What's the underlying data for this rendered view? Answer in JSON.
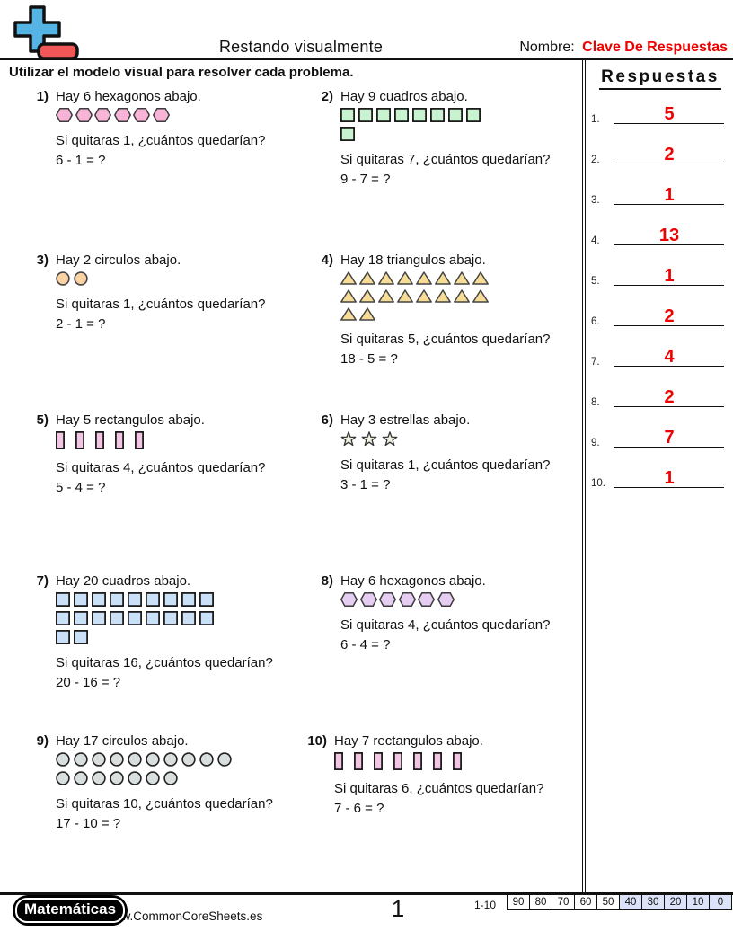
{
  "header": {
    "title": "Restando visualmente",
    "name_label": "Nombre:",
    "name_value": "Clave De Respuestas"
  },
  "instruction": "Utilizar el modelo visual para resolver cada problema.",
  "answers_panel": {
    "title": "Respuestas",
    "items": [
      {
        "label": "1.",
        "value": "5"
      },
      {
        "label": "2.",
        "value": "2"
      },
      {
        "label": "3.",
        "value": "1"
      },
      {
        "label": "4.",
        "value": "13"
      },
      {
        "label": "5.",
        "value": "1"
      },
      {
        "label": "6.",
        "value": "2"
      },
      {
        "label": "7.",
        "value": "4"
      },
      {
        "label": "8.",
        "value": "2"
      },
      {
        "label": "9.",
        "value": "7"
      },
      {
        "label": "10.",
        "value": "1"
      }
    ]
  },
  "problems": [
    {
      "number": "1)",
      "intro": "Hay 6 hexagonos abajo.",
      "shape": "hexagon",
      "fill": "#f8b4d6",
      "stroke": "#3c3c3c",
      "rows": [
        6
      ],
      "question": "Si quitaras 1, ¿cuántos quedarían?",
      "equation": "6 - 1 = ?"
    },
    {
      "number": "2)",
      "intro": "Hay 9 cuadros abajo.",
      "shape": "square",
      "fill": "#c9f2d0",
      "stroke": "#111111",
      "rows": [
        8,
        1
      ],
      "question": "Si quitaras 7, ¿cuántos quedarían?",
      "equation": "9 - 7 = ?"
    },
    {
      "number": "3)",
      "intro": "Hay 2 circulos abajo.",
      "shape": "circle",
      "fill": "#fbd2a4",
      "stroke": "#444444",
      "rows": [
        2
      ],
      "question": "Si quitaras 1, ¿cuántos quedarían?",
      "equation": "2 - 1 = ?"
    },
    {
      "number": "4)",
      "intro": "Hay 18 triangulos abajo.",
      "shape": "triangle",
      "fill": "#f6dc96",
      "stroke": "#444444",
      "rows": [
        8,
        8,
        2
      ],
      "question": "Si quitaras 5, ¿cuántos quedarían?",
      "equation": "18 - 5 = ?"
    },
    {
      "number": "5)",
      "intro": "Hay 5 rectangulos abajo.",
      "shape": "rect-v",
      "fill": "#f2c6e2",
      "stroke": "#111111",
      "rows": [
        5
      ],
      "question": "Si quitaras 4, ¿cuántos quedarían?",
      "equation": "5 - 4 = ?"
    },
    {
      "number": "6)",
      "intro": "Hay 3 estrellas abajo.",
      "shape": "star",
      "fill": "#edf3e1",
      "stroke": "#333333",
      "rows": [
        3
      ],
      "question": "Si quitaras 1, ¿cuántos quedarían?",
      "equation": "3 - 1 = ?"
    },
    {
      "number": "7)",
      "intro": "Hay 20 cuadros abajo.",
      "shape": "square",
      "fill": "#c9e0f7",
      "stroke": "#111111",
      "rows": [
        9,
        9,
        2
      ],
      "question": "Si quitaras 16, ¿cuántos quedarían?",
      "equation": "20 - 16 = ?"
    },
    {
      "number": "8)",
      "intro": "Hay 6 hexagonos abajo.",
      "shape": "hexagon",
      "fill": "#e5cef2",
      "stroke": "#3c3c3c",
      "rows": [
        6
      ],
      "question": "Si quitaras 4, ¿cuántos quedarían?",
      "equation": "6 - 4 = ?"
    },
    {
      "number": "9)",
      "intro": "Hay 17 circulos abajo.",
      "shape": "circle",
      "fill": "#d9dede",
      "stroke": "#222222",
      "rows": [
        10,
        7
      ],
      "question": "Si quitaras 10, ¿cuántos quedarían?",
      "equation": "17 - 10 = ?"
    },
    {
      "number": "10)",
      "intro": "Hay 7 rectangulos abajo.",
      "shape": "rect-v",
      "fill": "#f2c6e2",
      "stroke": "#111111",
      "rows": [
        7
      ],
      "question": "Si quitaras 6, ¿cuántos quedarían?",
      "equation": "7 - 6 = ?"
    }
  ],
  "footer": {
    "brand": "Matemáticas",
    "url": "www.CommonCoreSheets.es",
    "page": "1",
    "range_label": "1-10",
    "scores": [
      {
        "label": "90",
        "highlighted": false
      },
      {
        "label": "80",
        "highlighted": false
      },
      {
        "label": "70",
        "highlighted": false
      },
      {
        "label": "60",
        "highlighted": false
      },
      {
        "label": "50",
        "highlighted": false
      },
      {
        "label": "40",
        "highlighted": true
      },
      {
        "label": "30",
        "highlighted": true
      },
      {
        "label": "20",
        "highlighted": true
      },
      {
        "label": "10",
        "highlighted": true
      },
      {
        "label": "0",
        "highlighted": true
      }
    ]
  },
  "colors": {
    "accent_red": "#ee0000",
    "score_highlight": "#dce3f8",
    "logo_blue": "#55b4e4",
    "logo_red": "#f15757"
  }
}
